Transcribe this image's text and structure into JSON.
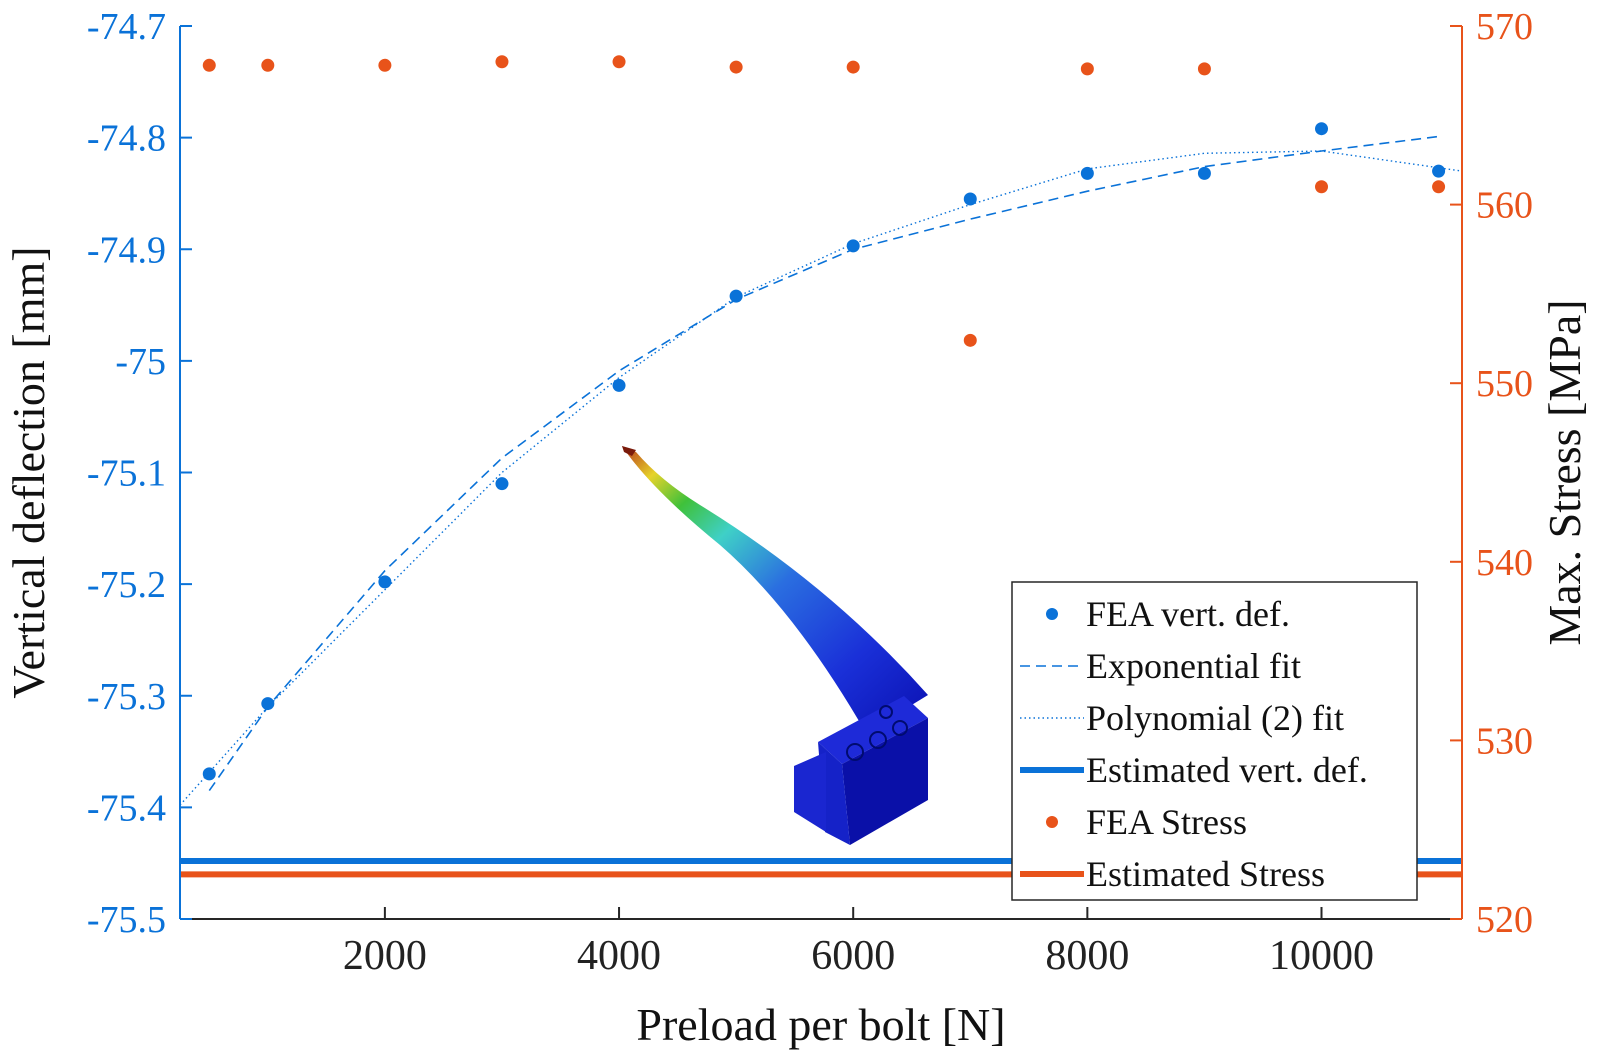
{
  "chart_data": {
    "type": "scatter",
    "xlabel": "Preload per bolt [N]",
    "ylabel_left": "Vertical deflection [mm]",
    "ylabel_right": "Max. Stress [MPa]",
    "xlim": [
      250,
      11200
    ],
    "ylim_left": [
      -75.5,
      -74.7
    ],
    "ylim_right": [
      520,
      570
    ],
    "x_ticks": [
      2000,
      4000,
      6000,
      8000,
      10000
    ],
    "y_left_ticks": [
      -75.5,
      -75.4,
      -75.3,
      -75.2,
      -75.1,
      -75,
      -74.9,
      -74.8,
      -74.7
    ],
    "y_left_tick_labels": [
      "-75.5",
      "-75.4",
      "-75.3",
      "-75.2",
      "-75.1",
      "-75",
      "-74.9",
      "-74.8",
      "-74.7"
    ],
    "y_right_ticks": [
      520,
      530,
      540,
      550,
      560,
      570
    ],
    "colors": {
      "blue": "#0a72d8",
      "orange": "#e8531a"
    },
    "series": [
      {
        "name": "FEA vert. def.",
        "axis": "left",
        "style": "markers",
        "x": [
          500,
          1000,
          2000,
          3000,
          4000,
          5000,
          6000,
          7000,
          8000,
          9000,
          10000,
          11000
        ],
        "y": [
          -75.37,
          -75.307,
          -75.198,
          -75.11,
          -75.022,
          -74.942,
          -74.897,
          -74.855,
          -74.832,
          -74.832,
          -74.792,
          -74.83
        ]
      },
      {
        "name": "Exponential fit",
        "axis": "left",
        "style": "dashed",
        "x": [
          500,
          1000,
          2000,
          3000,
          4000,
          5000,
          6000,
          7000,
          8000,
          9000,
          10000,
          11000
        ],
        "y": [
          -75.385,
          -75.31,
          -75.188,
          -75.087,
          -75.009,
          -74.945,
          -74.9,
          -74.873,
          -74.848,
          -74.826,
          -74.812,
          -74.799
        ]
      },
      {
        "name": "Polynomial (2) fit",
        "axis": "left",
        "style": "dotted",
        "x": [
          250,
          1000,
          2000,
          3000,
          4000,
          5000,
          6000,
          7000,
          8000,
          9000,
          10000,
          11200
        ],
        "y": [
          -75.398,
          -75.31,
          -75.205,
          -75.1,
          -75.015,
          -74.943,
          -74.895,
          -74.86,
          -74.828,
          -74.814,
          -74.812,
          -74.83
        ]
      },
      {
        "name": "Estimated vert. def.",
        "axis": "left",
        "style": "hline",
        "value": -75.448
      },
      {
        "name": "FEA Stress",
        "axis": "right",
        "style": "markers",
        "x": [
          500,
          1000,
          2000,
          3000,
          4000,
          5000,
          6000,
          7000,
          8000,
          9000,
          10000,
          11000
        ],
        "y": [
          567.8,
          567.8,
          567.8,
          568.0,
          568.0,
          567.7,
          567.7,
          552.4,
          567.6,
          567.6,
          561.0,
          561.0
        ]
      },
      {
        "name": "Estimated Stress",
        "axis": "right",
        "style": "hline",
        "value": 522.5
      }
    ]
  }
}
